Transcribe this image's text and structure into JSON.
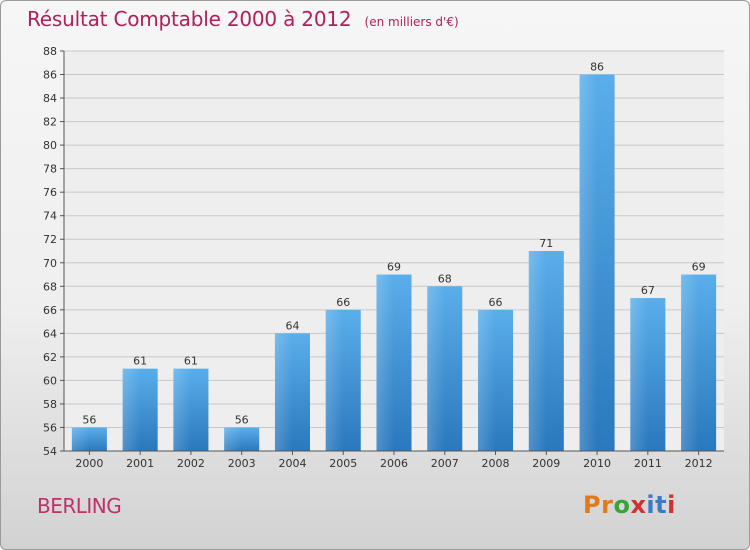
{
  "header": {
    "title": "Résultat Comptable 2000 à 2012",
    "subtitle": "(en milliers d'€)"
  },
  "footer": {
    "place": "BERLING",
    "brand": "Proxiti",
    "brand_colors": [
      "#e07a1a",
      "#e07a1a",
      "#3aa23a",
      "#d03030",
      "#3a7ac8",
      "#3a7ac8",
      "#d03030"
    ]
  },
  "chart_data": {
    "type": "bar",
    "categories": [
      "2000",
      "2001",
      "2002",
      "2003",
      "2004",
      "2005",
      "2006",
      "2007",
      "2008",
      "2009",
      "2010",
      "2011",
      "2012"
    ],
    "values": [
      56,
      61,
      61,
      56,
      64,
      66,
      69,
      68,
      66,
      71,
      86,
      67,
      69
    ],
    "ylim": [
      54,
      88
    ],
    "yticks": [
      54,
      56,
      58,
      60,
      62,
      64,
      66,
      68,
      70,
      72,
      74,
      76,
      78,
      80,
      82,
      84,
      86,
      88
    ],
    "grid": true,
    "bar_color": "#3a8fd6"
  }
}
